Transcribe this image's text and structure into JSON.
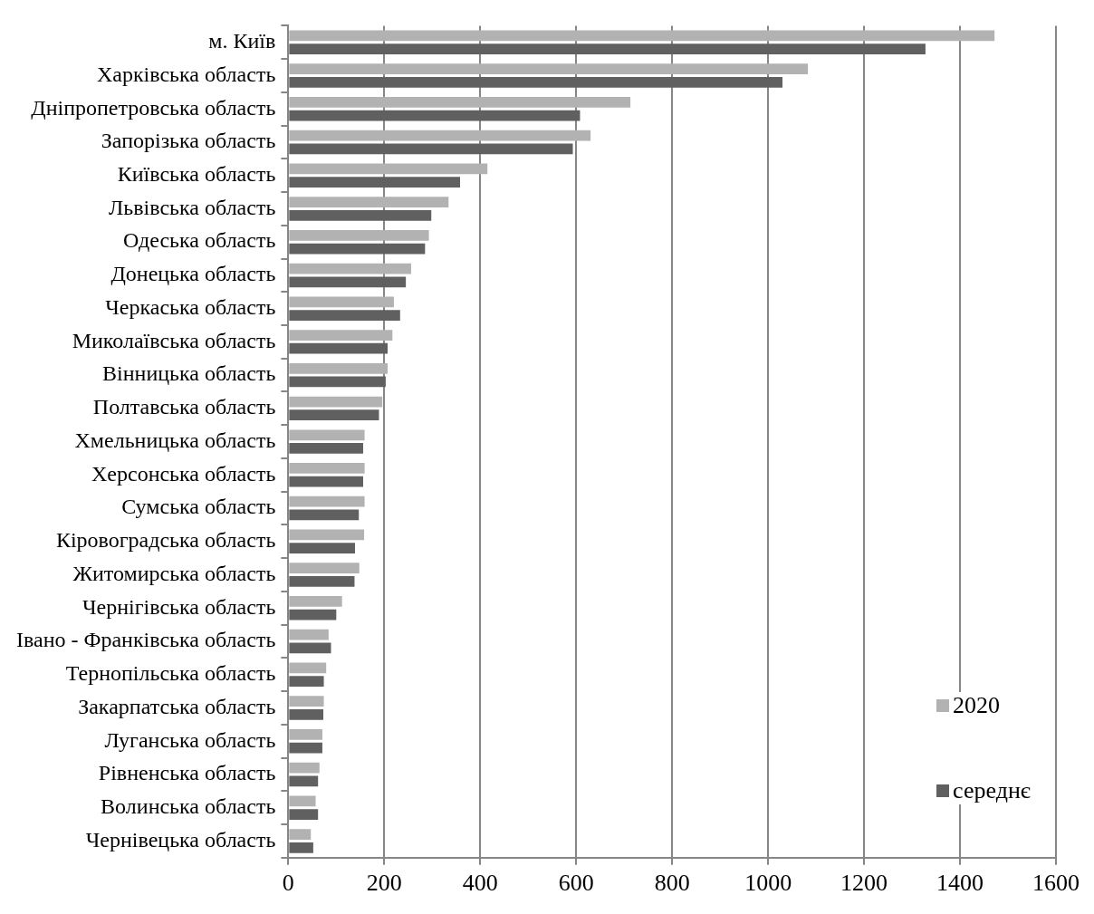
{
  "chart_data": {
    "type": "bar",
    "orientation": "horizontal",
    "categories": [
      "м. Київ",
      "Харківська область",
      "Дніпропетровська область",
      "Запорізька область",
      "Київська область",
      "Львівська область",
      "Одеська область",
      "Донецька область",
      "Черкаська область",
      "Миколаївська область",
      "Вінницька область",
      "Полтавська область",
      "Хмельницька область",
      "Херсонська область",
      "Сумська область",
      "Кіровоградська область",
      "Житомирська область",
      "Чернігівська область",
      "Івано - Франківська область",
      "Тернопільська область",
      "Закарпатська область",
      "Луганська область",
      "Рівненська область",
      "Волинська область",
      "Чернівецька область"
    ],
    "series": [
      {
        "name": "2020",
        "color": "#b2b2b2",
        "values": [
          1472,
          1083,
          713,
          630,
          415,
          334,
          293,
          256,
          220,
          217,
          207,
          196,
          159,
          159,
          159,
          158,
          148,
          112,
          84,
          79,
          74,
          71,
          65,
          57,
          47
        ]
      },
      {
        "name": "середнє",
        "color": "#606060",
        "values": [
          1328,
          1030,
          608,
          593,
          358,
          298,
          285,
          245,
          233,
          207,
          203,
          189,
          156,
          156,
          147,
          139,
          138,
          100,
          89,
          74,
          73,
          71,
          62,
          62,
          52
        ]
      }
    ],
    "xlim": [
      0,
      1600
    ],
    "xticks": [
      0,
      200,
      400,
      600,
      800,
      1000,
      1200,
      1400,
      1600
    ],
    "grid": "x",
    "legend": "bottom right"
  }
}
